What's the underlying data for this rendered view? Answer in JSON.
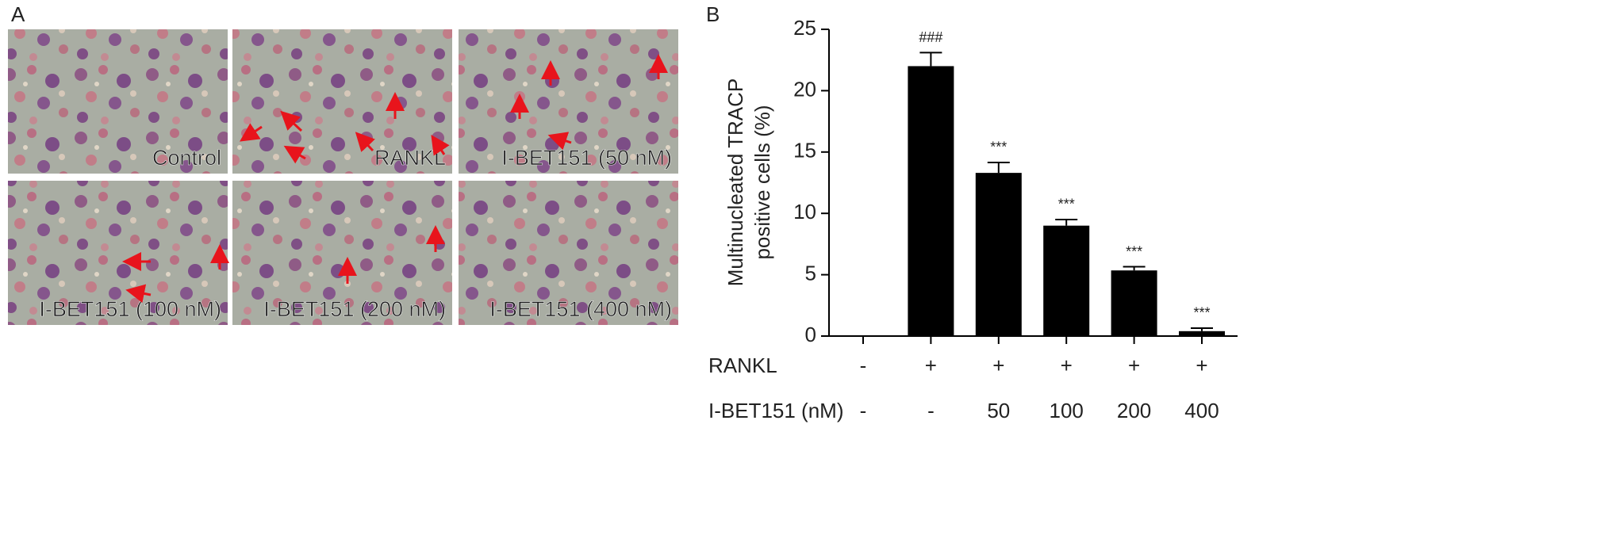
{
  "panels": {
    "a": "A",
    "b": "B"
  },
  "micrographs": [
    "Control",
    "RANKL",
    "I-BET151 (50 nM)",
    "I-BET151 (100 nM)",
    "I-BET151 (200 nM)",
    "I-BET151 (400 nM)"
  ],
  "chart_data": {
    "type": "bar",
    "y_label": [
      "Multinucleated TRACP",
      "positive cells (%)"
    ],
    "categories": [
      null,
      null,
      null,
      null,
      null,
      null
    ],
    "values": [
      0,
      22,
      13.3,
      9,
      5.35,
      0.4
    ],
    "errors": [
      0,
      1.1,
      0.85,
      0.5,
      0.3,
      0.25
    ],
    "annotations": [
      null,
      "###",
      "***",
      "***",
      "***",
      "***"
    ],
    "color": "#000000",
    "ylim": [
      0,
      25
    ],
    "yticks": [
      0,
      5,
      10,
      15,
      20,
      25
    ],
    "treatment_rows": [
      {
        "label": "RANKL",
        "values": [
          "-",
          "+",
          "+",
          "+",
          "+",
          "+"
        ]
      },
      {
        "label": "I-BET151 (nM)",
        "values": [
          "-",
          "-",
          "50",
          "100",
          "200",
          "400"
        ]
      }
    ]
  }
}
